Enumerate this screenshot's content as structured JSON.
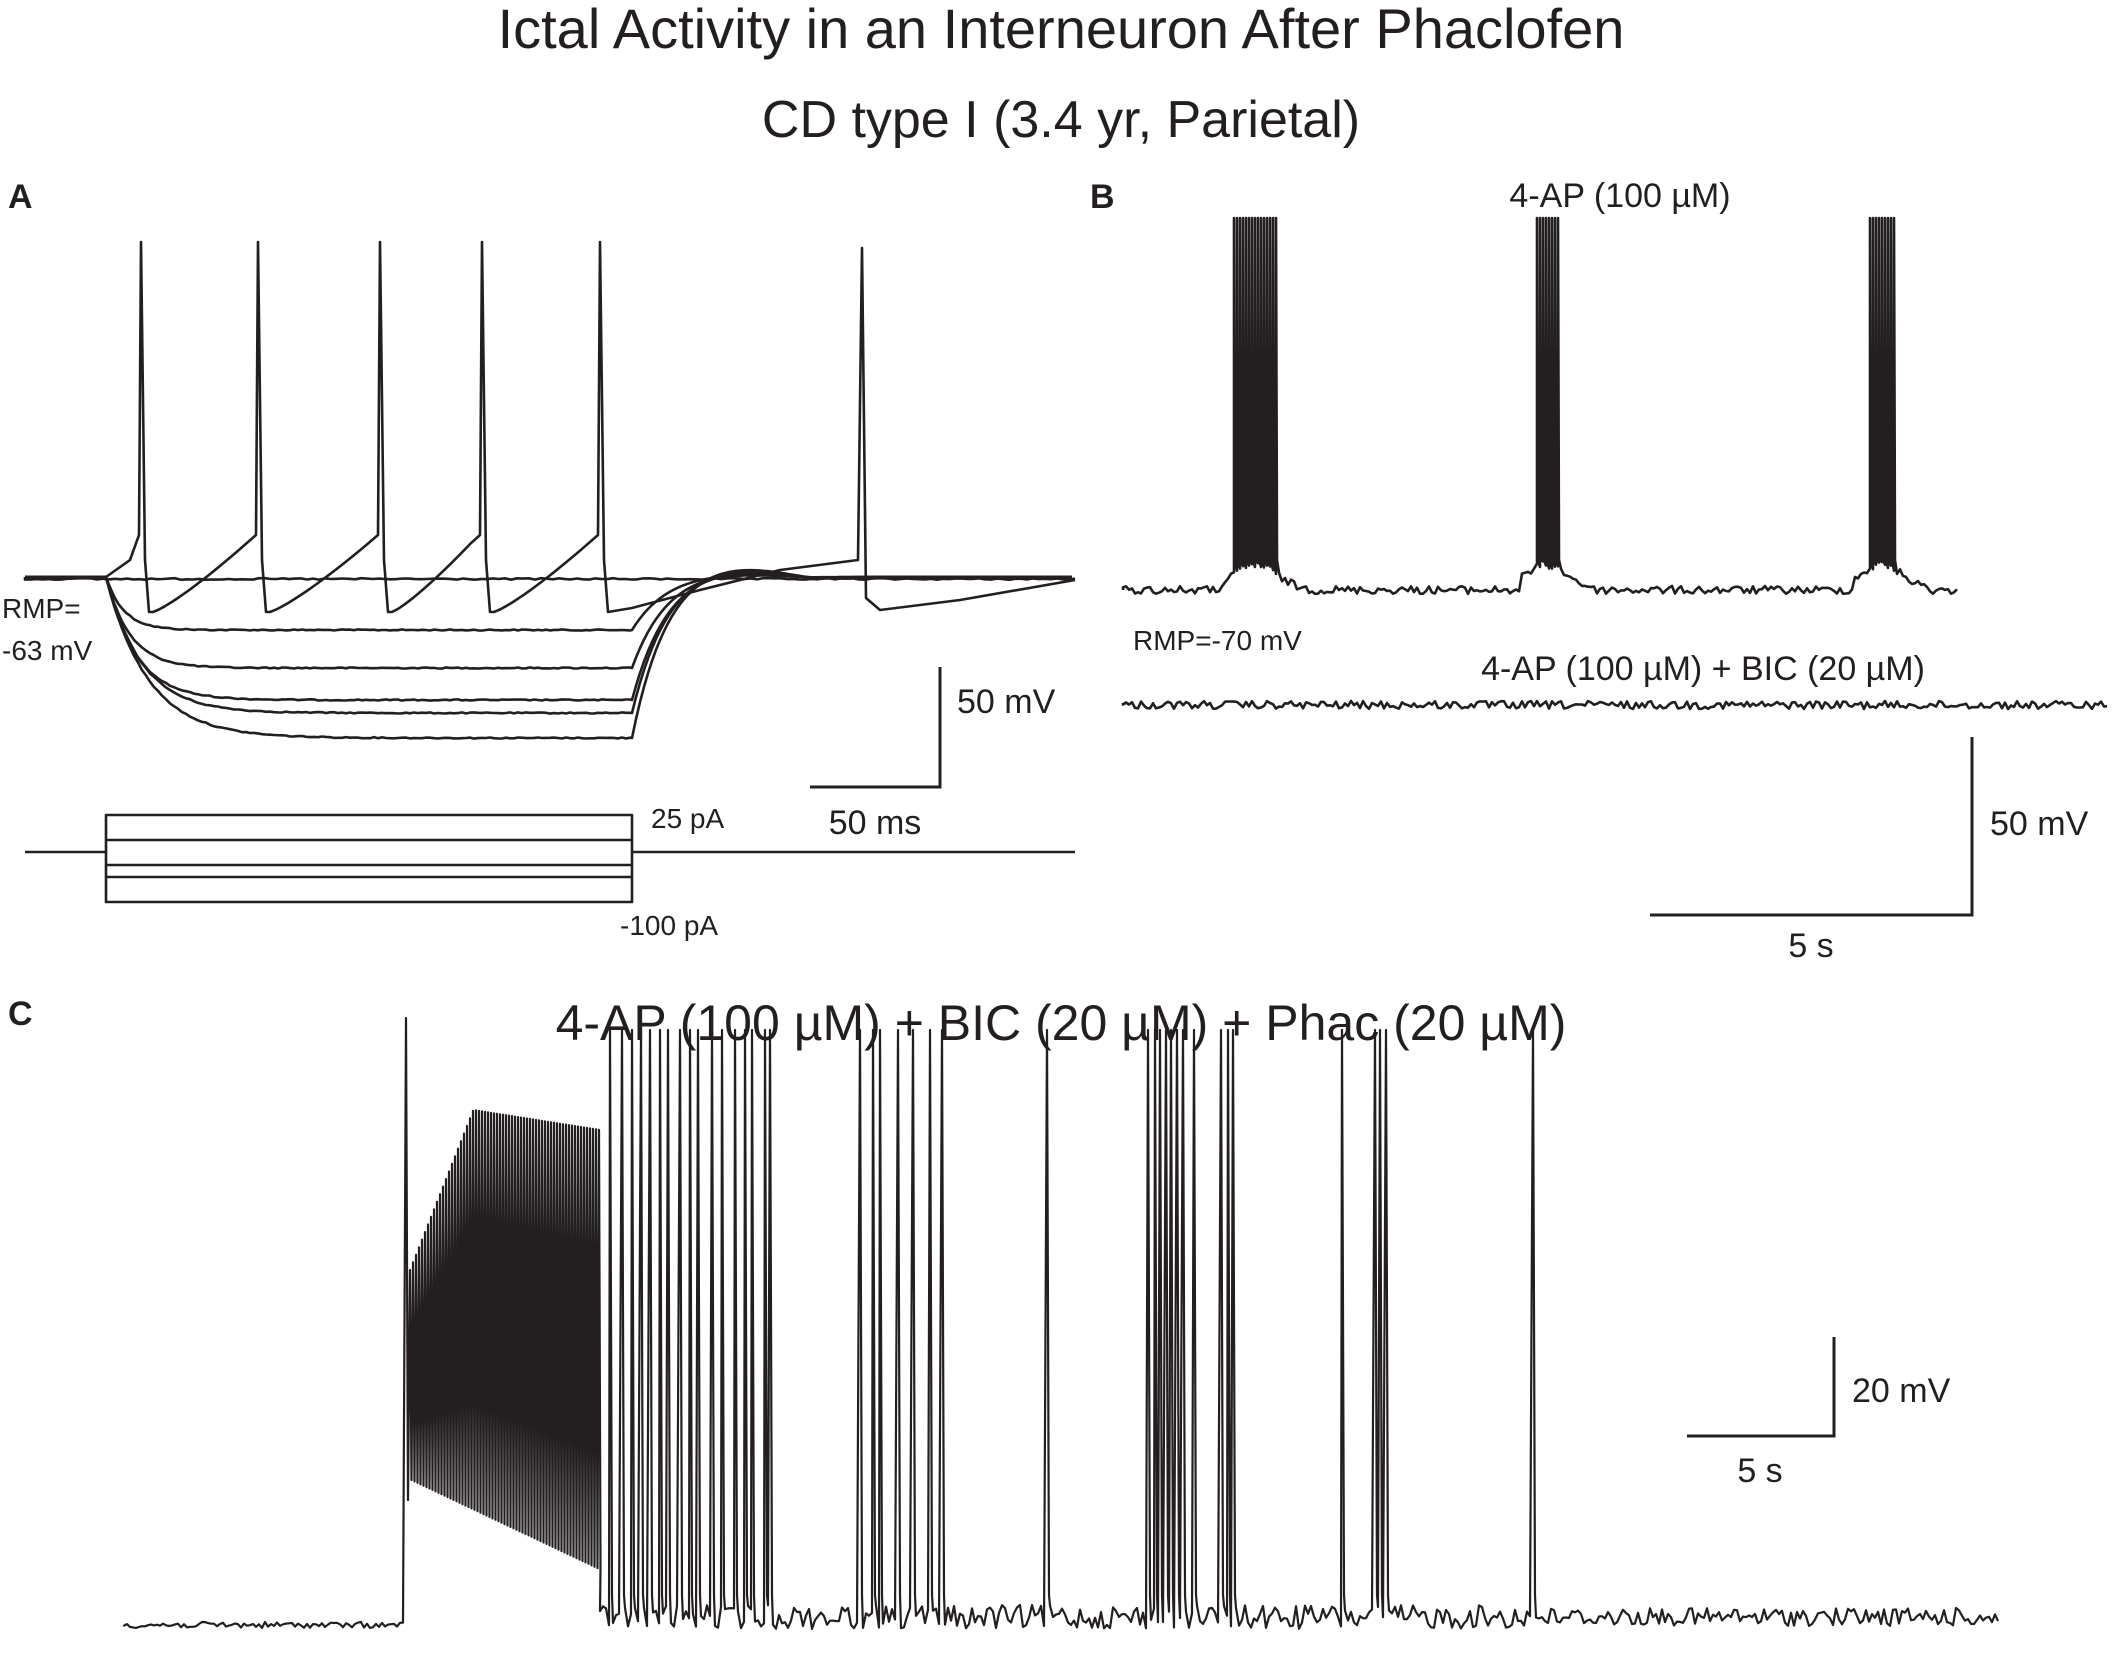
{
  "figure": {
    "title": "Ictal Activity in an Interneuron After Phaclofen",
    "subtitle": "CD type I (3.4 yr, Parietal)"
  },
  "panel_a": {
    "letter": "A",
    "rmp_label_line1": "RMP=",
    "rmp_label_line2": "-63 mV",
    "scale_v": "50 mV",
    "scale_t": "50 ms",
    "stim_top": "25 pA",
    "stim_bottom": "-100 pA"
  },
  "panel_b": {
    "letter": "B",
    "top_condition": "4-AP (100 µM)",
    "rmp_label": "RMP=-70 mV",
    "bottom_condition": "4-AP (100 µM) + BIC (20 µM)",
    "scale_v": "50 mV",
    "scale_t": "5 s"
  },
  "panel_c": {
    "letter": "C",
    "condition": "4-AP (100 µM) + BIC (20 µM) + Phac (20 µM)",
    "scale_v": "20 mV",
    "scale_t": "5 s"
  },
  "colors": {
    "ink": "#231f20",
    "background": "#ffffff"
  }
}
